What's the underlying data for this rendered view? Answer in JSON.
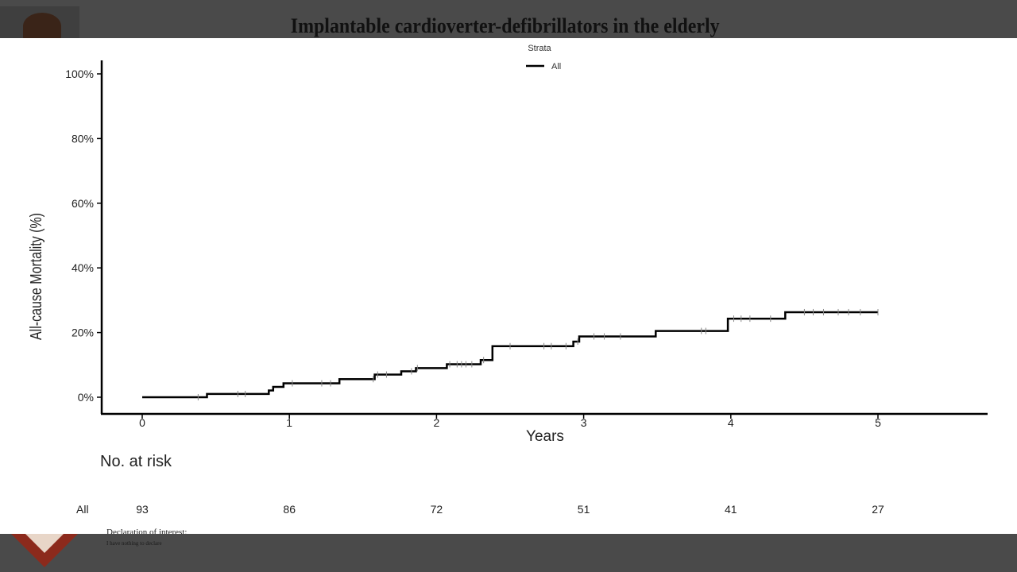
{
  "slide": {
    "title": "Implantable cardioverter-defibrillators in the elderly",
    "declaration_heading": "Declaration of interest:",
    "declaration_text": "I have nothing to declare"
  },
  "chart_data": {
    "type": "line",
    "style": "step",
    "ylabel": "All-cause Mortality (%)",
    "xlabel": "Years",
    "legend_title": "Strata",
    "legend_position": "top-center",
    "series": [
      {
        "name": "All",
        "color": "#000000",
        "x": [
          0,
          0.44,
          0.44,
          0.86,
          0.86,
          0.89,
          0.89,
          0.96,
          0.96,
          1.34,
          1.34,
          1.58,
          1.58,
          1.76,
          1.76,
          1.86,
          1.86,
          2.07,
          2.07,
          2.3,
          2.3,
          2.38,
          2.38,
          2.93,
          2.93,
          2.97,
          2.97,
          3.49,
          3.49,
          3.98,
          3.98,
          4.37,
          4.37,
          5.0
        ],
        "y": [
          0,
          0,
          1.0,
          1.0,
          2.1,
          2.1,
          3.2,
          3.2,
          4.3,
          4.3,
          5.6,
          5.6,
          7.0,
          7.0,
          8.0,
          8.0,
          9.0,
          9.0,
          10.2,
          10.2,
          11.5,
          11.5,
          15.8,
          15.8,
          17.2,
          17.2,
          18.8,
          18.8,
          20.5,
          20.5,
          24.3,
          24.3,
          26.3,
          26.3
        ]
      }
    ],
    "censor_marks_x": [
      0.38,
      0.65,
      0.7,
      1.02,
      1.22,
      1.28,
      1.57,
      1.6,
      1.66,
      1.83,
      1.87,
      2.09,
      2.14,
      2.17,
      2.2,
      2.24,
      2.32,
      2.5,
      2.73,
      2.78,
      2.88,
      2.96,
      3.07,
      3.14,
      3.25,
      3.8,
      3.83,
      4.02,
      4.07,
      4.13,
      4.27,
      4.5,
      4.56,
      4.63,
      4.73,
      4.8,
      4.88,
      5.0
    ],
    "x_ticks": [
      "0",
      "1",
      "2",
      "3",
      "4",
      "5"
    ],
    "y_ticks": [
      "0%",
      "20%",
      "40%",
      "60%",
      "80%",
      "100%"
    ],
    "xlim": [
      -0.27,
      5.7
    ],
    "ylim": [
      -5,
      105
    ],
    "grid": false,
    "risk_table": {
      "title": "No. at risk",
      "row_label": "All",
      "values": [
        "93",
        "86",
        "72",
        "51",
        "41",
        "27"
      ]
    }
  }
}
